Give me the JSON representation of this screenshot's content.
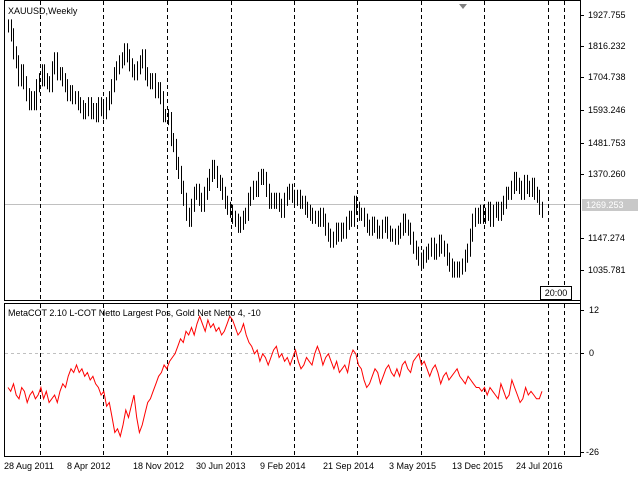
{
  "price_panel": {
    "title": "XAUUSD,Weekly",
    "current_price": "1269.253",
    "price_labels": [
      "1927.755",
      "1816.232",
      "1704.738",
      "1593.246",
      "1481.753",
      "1370.260",
      "1147.274",
      "1035.781"
    ],
    "time_box": "20:00"
  },
  "indicator_panel": {
    "title": "MetaCOT 2.10 L-COT Netto Largest Pos, Gold Net Netto 4, -10",
    "level_labels": [
      "12",
      "0",
      "-26"
    ]
  },
  "x_axis": {
    "labels": [
      "28 Aug 2011",
      "8 Apr 2012",
      "18 Nov 2012",
      "30 Jun 2013",
      "9 Feb 2014",
      "21 Sep 2014",
      "3 May 2015",
      "13 Dec 2015",
      "24 Jul 2016"
    ]
  },
  "colors": {
    "background": "#ffffff",
    "bars": "#000000",
    "indicator_line": "#ff0000",
    "grid": "#000000",
    "price_line": "#c0c0c0"
  },
  "chart_data": [
    {
      "type": "bar",
      "title": "XAUUSD,Weekly",
      "ylim": [
        970,
        1960
      ],
      "series": [
        {
          "name": "XAUUSD,Weekly",
          "values": [
            1880,
            1850,
            1790,
            1760,
            1700,
            1730,
            1690,
            1650,
            1620,
            1640,
            1620,
            1680,
            1700,
            1730,
            1700,
            1690,
            1680,
            1740,
            1770,
            1720,
            1720,
            1700,
            1680,
            1650,
            1660,
            1640,
            1640,
            1620,
            1610,
            1590,
            1600,
            1620,
            1590,
            1600,
            1580,
            1620,
            1600,
            1590,
            1620,
            1640,
            1680,
            1720,
            1740,
            1760,
            1770,
            1800,
            1780,
            1750,
            1730,
            1720,
            1740,
            1760,
            1780,
            1720,
            1700,
            1690,
            1700,
            1660,
            1670,
            1640,
            1580,
            1580,
            1570,
            1500,
            1480,
            1420,
            1390,
            1340,
            1300,
            1250,
            1230,
            1280,
            1320,
            1330,
            1300,
            1280,
            1320,
            1350,
            1380,
            1410,
            1390,
            1360,
            1350,
            1320,
            1290,
            1270,
            1260,
            1240,
            1230,
            1210,
            1220,
            1240,
            1250,
            1300,
            1320,
            1340,
            1330,
            1370,
            1380,
            1370,
            1330,
            1290,
            1300,
            1290,
            1300,
            1280,
            1260,
            1300,
            1320,
            1330,
            1310,
            1300,
            1310,
            1290,
            1290,
            1270,
            1260,
            1250,
            1240,
            1240,
            1230,
            1250,
            1230,
            1200,
            1180,
            1160,
            1170,
            1200,
            1180,
            1200,
            1190,
            1220,
            1240,
            1230,
            1290,
            1270,
            1250,
            1250,
            1230,
            1210,
            1200,
            1220,
            1210,
            1190,
            1190,
            1210,
            1220,
            1190,
            1180,
            1180,
            1170,
            1190,
            1200,
            1230,
            1210,
            1200,
            1170,
            1140,
            1120,
            1100,
            1090,
            1110,
            1120,
            1130,
            1150,
            1120,
            1130,
            1160,
            1140,
            1130,
            1100,
            1080,
            1060,
            1070,
            1060,
            1070,
            1080,
            1110,
            1130,
            1180,
            1230,
            1250,
            1240,
            1260,
            1240,
            1250,
            1270,
            1230,
            1260,
            1270,
            1250,
            1270,
            1290,
            1320,
            1320,
            1340,
            1370,
            1350,
            1340,
            1320,
            1360,
            1340,
            1330,
            1350,
            1320,
            1310,
            1270,
            1260
          ]
        }
      ]
    },
    {
      "type": "line",
      "title": "MetaCOT 2.10 L-COT Netto Largest Pos, Gold Net Netto 4, -10",
      "ylim": [
        -27,
        13
      ],
      "series": [
        {
          "name": "MetaCOT 2.10 L-COT Netto Largest Pos, Gold Net Netto 4, -10",
          "values": [
            -9,
            -10,
            -8,
            -11,
            -12,
            -9,
            -10,
            -13,
            -11,
            -10,
            -12,
            -11,
            -9,
            -12,
            -10,
            -13,
            -12,
            -11,
            -13,
            -10,
            -8,
            -9,
            -6,
            -4,
            -5,
            -3,
            -5,
            -4,
            -6,
            -5,
            -7,
            -6,
            -8,
            -9,
            -11,
            -10,
            -14,
            -13,
            -17,
            -21,
            -20,
            -22,
            -19,
            -15,
            -17,
            -14,
            -11,
            -17,
            -21,
            -19,
            -16,
            -13,
            -12,
            -10,
            -8,
            -6,
            -5,
            -3,
            -4,
            -2,
            -1,
            0,
            2,
            4,
            3,
            6,
            5,
            7,
            5,
            8,
            10,
            8,
            6,
            9,
            7,
            8,
            6,
            7,
            5,
            6,
            8,
            10,
            9,
            7,
            5,
            6,
            8,
            5,
            3,
            2,
            0,
            1,
            -2,
            0,
            -1,
            -3,
            -1,
            1,
            2,
            -1,
            0,
            -2,
            -1,
            -3,
            -1,
            1,
            -2,
            -4,
            -3,
            -1,
            -2,
            -3,
            0,
            2,
            0,
            -3,
            -1,
            0,
            -2,
            -4,
            -2,
            -5,
            -4,
            -3,
            -5,
            -1,
            1,
            0,
            -3,
            -4,
            -7,
            -9,
            -8,
            -6,
            -4,
            -5,
            -8,
            -6,
            -4,
            -3,
            -5,
            -6,
            -4,
            -6,
            -3,
            -2,
            -4,
            -5,
            -2,
            -1,
            0,
            -3,
            -2,
            -4,
            -6,
            -4,
            -3,
            -5,
            -8,
            -6,
            -5,
            -7,
            -6,
            -5,
            -4,
            -6,
            -7,
            -8,
            -6,
            -7,
            -8,
            -9,
            -9,
            -10,
            -9,
            -11,
            -9,
            -10,
            -11,
            -12,
            -8,
            -10,
            -12,
            -11,
            -7,
            -9,
            -11,
            -13,
            -12,
            -9,
            -11,
            -10,
            -11,
            -12,
            -12,
            -10
          ]
        }
      ]
    }
  ]
}
